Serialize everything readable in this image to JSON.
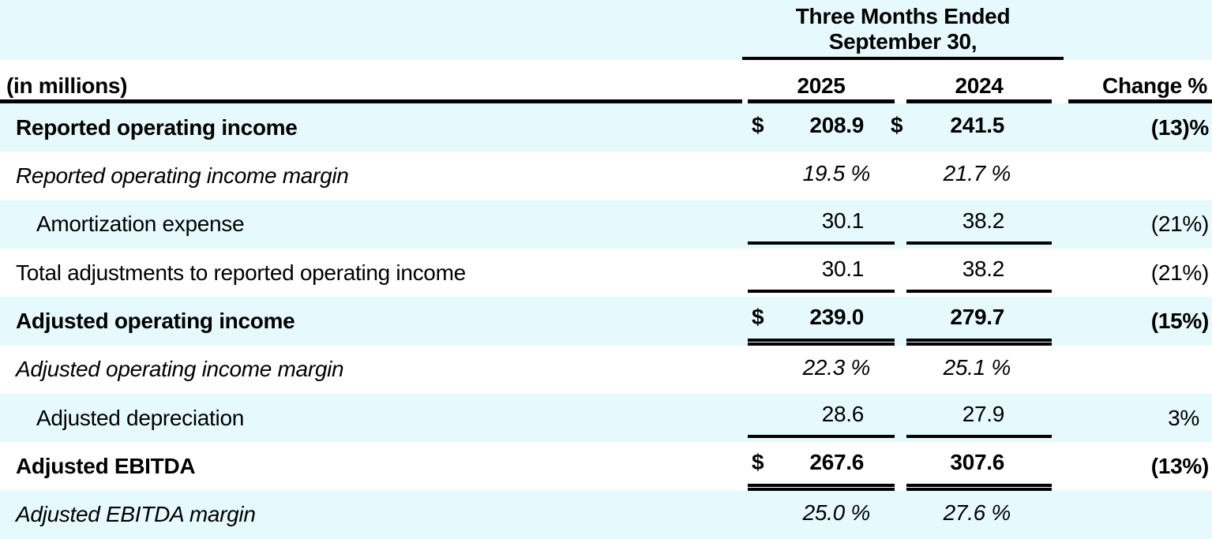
{
  "header": {
    "period_line1": "Three Months Ended",
    "period_line2": "September 30,",
    "units_label": "(in millions)",
    "year_left": "2025",
    "year_right": "2024",
    "change_label": "Change %"
  },
  "rows": [
    {
      "label": "Reported operating income",
      "d25": "$",
      "v25": "208.9",
      "d24": "$",
      "v24": "241.5",
      "change": "(13)%"
    },
    {
      "label": "Reported operating income margin",
      "d25": "",
      "v25": "19.5 %",
      "d24": "",
      "v24": "21.7 %",
      "change": ""
    },
    {
      "label": "Amortization expense",
      "d25": "",
      "v25": "30.1",
      "d24": "",
      "v24": "38.2",
      "change": "(21%)"
    },
    {
      "label": "Total adjustments to reported operating income",
      "d25": "",
      "v25": "30.1",
      "d24": "",
      "v24": "38.2",
      "change": "(21%)"
    },
    {
      "label": "Adjusted operating income",
      "d25": "$",
      "v25": "239.0",
      "d24": "",
      "v24": "279.7",
      "change": "(15%)"
    },
    {
      "label": "Adjusted operating income margin",
      "d25": "",
      "v25": "22.3 %",
      "d24": "",
      "v24": "25.1 %",
      "change": ""
    },
    {
      "label": "Adjusted depreciation",
      "d25": "",
      "v25": "28.6",
      "d24": "",
      "v24": "27.9",
      "change": "3%"
    },
    {
      "label": "Adjusted EBITDA",
      "d25": "$",
      "v25": "267.6",
      "d24": "",
      "v24": "307.6",
      "change": "(13%)"
    },
    {
      "label": "Adjusted EBITDA margin",
      "d25": "",
      "v25": "25.0 %",
      "d24": "",
      "v24": "27.6 %",
      "change": ""
    }
  ],
  "colors": {
    "row_highlight": "#e6fafd",
    "rule": "#000000"
  }
}
